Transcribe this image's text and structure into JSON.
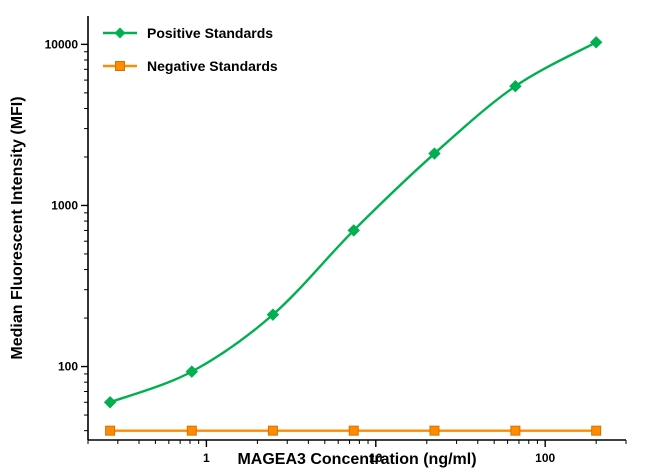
{
  "chart_data": {
    "type": "line",
    "title": "",
    "xlabel": "MAGEA3 Concentration (ng/ml)",
    "ylabel": "Median Fluorescent Intensity (MFI)",
    "x_scale": "log",
    "y_scale": "log",
    "xlim": [
      0.2,
      300
    ],
    "ylim": [
      35,
      15000
    ],
    "x_ticks": [
      1,
      10,
      100
    ],
    "y_ticks": [
      100,
      1000,
      10000
    ],
    "x": [
      0.27,
      0.82,
      2.47,
      7.41,
      22.2,
      66.7,
      200
    ],
    "series": [
      {
        "name": "Positive Standards",
        "color": "#00b050",
        "marker": "diamond",
        "values": [
          60,
          93,
          210,
          700,
          2100,
          5500,
          10300
        ]
      },
      {
        "name": "Negative Standards",
        "color": "#ff8c00",
        "marker": "square",
        "values": [
          40,
          40,
          40,
          40,
          40,
          40,
          40
        ]
      }
    ],
    "legend_position": "top-left",
    "grid": false,
    "axis_color": "#000000",
    "text_color": "#000000"
  }
}
